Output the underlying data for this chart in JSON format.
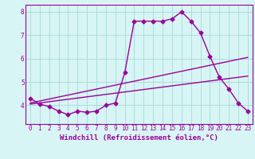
{
  "xlabel": "Windchill (Refroidissement éolien,°C)",
  "x_values": [
    0,
    1,
    2,
    3,
    4,
    5,
    6,
    7,
    8,
    9,
    10,
    11,
    12,
    13,
    14,
    15,
    16,
    17,
    18,
    19,
    20,
    21,
    22,
    23
  ],
  "line1": [
    4.3,
    4.05,
    3.95,
    3.75,
    3.6,
    3.75,
    3.7,
    3.75,
    4.0,
    4.1,
    5.4,
    7.6,
    7.6,
    7.6,
    7.6,
    7.7,
    8.0,
    7.6,
    7.1,
    6.1,
    5.2,
    4.7,
    4.1,
    3.75
  ],
  "line2_x": [
    0,
    23
  ],
  "line2_y": [
    4.1,
    6.05
  ],
  "line3_x": [
    0,
    23
  ],
  "line3_y": [
    4.05,
    5.25
  ],
  "line_color": "#990099",
  "bg_color": "#d8f5f5",
  "grid_color": "#aadddd",
  "ylim": [
    3.2,
    8.3
  ],
  "xlim": [
    -0.5,
    23.5
  ],
  "yticks": [
    4,
    5,
    6,
    7,
    8
  ],
  "xticks": [
    0,
    1,
    2,
    3,
    4,
    5,
    6,
    7,
    8,
    9,
    10,
    11,
    12,
    13,
    14,
    15,
    16,
    17,
    18,
    19,
    20,
    21,
    22,
    23
  ],
  "marker": "D",
  "marker_size": 2.5,
  "line_width": 1.0,
  "tick_fontsize": 5.5,
  "label_fontsize": 6.5
}
